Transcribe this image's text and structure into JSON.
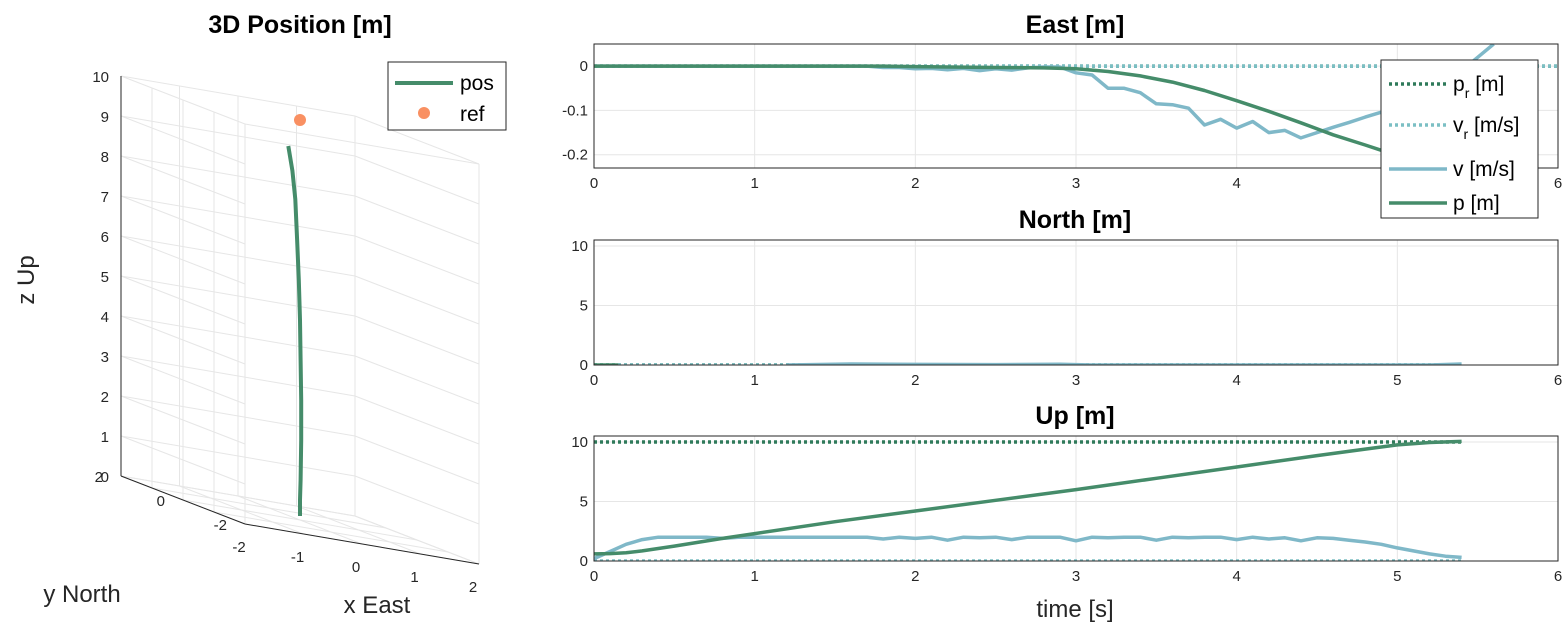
{
  "chart_data": [
    {
      "type": "line3d",
      "title": "3D Position [m]",
      "xlabel": "x East",
      "ylabel": "y North",
      "zlabel": "z Up",
      "xlim": [
        -2,
        2
      ],
      "ylim": [
        -2,
        2
      ],
      "zlim": [
        0,
        10
      ],
      "x_ticks": [
        -2,
        -1,
        0,
        1,
        2
      ],
      "y_ticks": [
        -2,
        0,
        2
      ],
      "z_ticks": [
        0,
        1,
        2,
        3,
        4,
        5,
        6,
        7,
        8,
        9,
        10
      ],
      "grid": true,
      "legend": {
        "placement": "top-right",
        "entries": [
          "pos",
          "ref"
        ]
      },
      "series": [
        {
          "name": "pos",
          "kind": "line",
          "color": "#458c6a",
          "points": [
            [
              0,
              0,
              0.1
            ],
            [
              0,
              0,
              0.5
            ],
            [
              0.01,
              0,
              1
            ],
            [
              0.02,
              0,
              2
            ],
            [
              0.02,
              0,
              3
            ],
            [
              0.01,
              0,
              4
            ],
            [
              0,
              0,
              5
            ],
            [
              -0.02,
              0,
              6
            ],
            [
              -0.05,
              0,
              7
            ],
            [
              -0.08,
              0,
              8
            ],
            [
              -0.13,
              0,
              8.7
            ],
            [
              -0.2,
              0,
              9.3
            ]
          ]
        },
        {
          "name": "ref",
          "kind": "point",
          "color": "#f99062",
          "points": [
            [
              0,
              0,
              10
            ]
          ]
        }
      ]
    },
    {
      "type": "line",
      "title": "East [m]",
      "xlim": [
        0,
        6
      ],
      "ylim": [
        -0.23,
        0.05
      ],
      "x_ticks": [
        0,
        1,
        2,
        3,
        4,
        5,
        6
      ],
      "y_ticks": [
        0,
        -0.1,
        -0.2
      ],
      "y_tick_labels": [
        "0",
        "-0.1",
        "-0.2"
      ],
      "grid": true,
      "legend": {
        "placement": "right",
        "entries": [
          {
            "base": "p",
            "sub": "r",
            "rest": " [m]",
            "style": "dotted",
            "color": "#2f7a5a"
          },
          {
            "base": "v",
            "sub": "r",
            "rest": " [m/s]",
            "style": "dotted",
            "color": "#7bbfc4"
          },
          {
            "base": "v [m/s]",
            "sub": "",
            "rest": "",
            "style": "solid",
            "color": "#7fb8c8"
          },
          {
            "base": "p [m]",
            "sub": "",
            "rest": "",
            "style": "solid",
            "color": "#458c6a"
          }
        ]
      },
      "series": [
        {
          "name": "p_r [m]",
          "style": "dotted",
          "color": "#2f7a5a",
          "x": [
            0,
            6
          ],
          "y": [
            0,
            0
          ]
        },
        {
          "name": "v_r [m/s]",
          "style": "dotted",
          "color": "#7bbfc4",
          "x": [
            0,
            6
          ],
          "y": [
            0,
            0
          ]
        },
        {
          "name": "v [m/s]",
          "style": "solid",
          "color": "#7fb8c8",
          "x": [
            0,
            1.7,
            1.8,
            1.9,
            2.0,
            2.1,
            2.2,
            2.3,
            2.4,
            2.5,
            2.6,
            2.7,
            2.8,
            2.9,
            3.0,
            3.1,
            3.2,
            3.3,
            3.4,
            3.5,
            3.6,
            3.7,
            3.8,
            3.9,
            4.0,
            4.1,
            4.2,
            4.3,
            4.4,
            4.5,
            4.6,
            4.7,
            4.8,
            4.9,
            5.0,
            5.1,
            5.2,
            5.3,
            5.4,
            5.5,
            5.6
          ],
          "y": [
            0,
            0,
            -0.003,
            -0.003,
            -0.006,
            -0.005,
            -0.008,
            -0.005,
            -0.01,
            -0.006,
            -0.009,
            -0.004,
            -0.002,
            -0.002,
            -0.015,
            -0.02,
            -0.05,
            -0.05,
            -0.06,
            -0.085,
            -0.087,
            -0.095,
            -0.133,
            -0.12,
            -0.14,
            -0.125,
            -0.15,
            -0.145,
            -0.162,
            -0.15,
            -0.138,
            -0.127,
            -0.115,
            -0.104,
            -0.09,
            -0.072,
            -0.052,
            -0.032,
            -0.01,
            0.02,
            0.05
          ]
        },
        {
          "name": "p [m]",
          "style": "solid",
          "color": "#458c6a",
          "x": [
            0,
            1.8,
            2.0,
            2.5,
            2.8,
            3.0,
            3.2,
            3.4,
            3.6,
            3.8,
            4.0,
            4.2,
            4.4,
            4.6,
            4.8,
            4.9,
            5.0
          ],
          "y": [
            0,
            0,
            -0.001,
            -0.003,
            -0.004,
            -0.006,
            -0.012,
            -0.022,
            -0.036,
            -0.055,
            -0.078,
            -0.102,
            -0.128,
            -0.155,
            -0.178,
            -0.19,
            -0.2
          ]
        }
      ]
    },
    {
      "type": "line",
      "title": "North [m]",
      "xlim": [
        0,
        6
      ],
      "ylim": [
        0,
        10.5
      ],
      "x_ticks": [
        0,
        1,
        2,
        3,
        4,
        5,
        6
      ],
      "y_ticks": [
        0,
        5,
        10
      ],
      "y_tick_labels": [
        "0",
        "5",
        "10"
      ],
      "grid": true,
      "series": [
        {
          "name": "p_r [m]",
          "style": "dotted",
          "color": "#2f7a5a",
          "x": [
            0,
            5.4
          ],
          "y": [
            0,
            0
          ]
        },
        {
          "name": "v_r [m/s]",
          "style": "dotted",
          "color": "#7bbfc4",
          "x": [
            0,
            5.4
          ],
          "y": [
            0,
            0
          ]
        },
        {
          "name": "p [m]",
          "style": "solid",
          "color": "#458c6a",
          "x": [
            0,
            0.15
          ],
          "y": [
            0,
            0
          ]
        },
        {
          "name": "v [m/s]",
          "style": "solid",
          "color": "#7fb8c8",
          "x": [
            1.2,
            1.6,
            2.0,
            2.5,
            2.9,
            3.1,
            5.2,
            5.4
          ],
          "y": [
            0,
            0.08,
            0.05,
            0.03,
            0.06,
            0,
            0,
            0.08
          ]
        }
      ]
    },
    {
      "type": "line",
      "title": "Up [m]",
      "xlabel": "time [s]",
      "xlim": [
        0,
        6
      ],
      "ylim": [
        0,
        10.5
      ],
      "x_ticks": [
        0,
        1,
        2,
        3,
        4,
        5,
        6
      ],
      "y_ticks": [
        0,
        5,
        10
      ],
      "y_tick_labels": [
        "0",
        "5",
        "10"
      ],
      "grid": true,
      "series": [
        {
          "name": "p_r [m]",
          "style": "dotted",
          "color": "#2f7a5a",
          "x": [
            0,
            5.4
          ],
          "y": [
            10,
            10
          ]
        },
        {
          "name": "v_r [m/s]",
          "style": "dotted",
          "color": "#7bbfc4",
          "x": [
            0,
            5.4
          ],
          "y": [
            0,
            0
          ]
        },
        {
          "name": "v [m/s]",
          "style": "solid",
          "color": "#7fb8c8",
          "x": [
            0,
            0.1,
            0.2,
            0.3,
            0.4,
            0.5,
            0.6,
            0.7,
            0.8,
            0.9,
            1.0,
            1.1,
            1.2,
            1.3,
            1.4,
            1.5,
            1.6,
            1.7,
            1.8,
            1.9,
            2.0,
            2.1,
            2.2,
            2.3,
            2.4,
            2.5,
            2.6,
            2.7,
            2.8,
            2.9,
            3.0,
            3.1,
            3.2,
            3.3,
            3.4,
            3.5,
            3.6,
            3.7,
            3.8,
            3.9,
            4.0,
            4.1,
            4.2,
            4.3,
            4.4,
            4.5,
            4.6,
            4.7,
            4.8,
            4.9,
            5.0,
            5.1,
            5.2,
            5.3,
            5.4
          ],
          "y": [
            0.2,
            0.8,
            1.4,
            1.8,
            2.0,
            2.0,
            2.0,
            2.0,
            1.9,
            2.0,
            2.0,
            2.0,
            2.0,
            2.0,
            2.0,
            2.0,
            2.0,
            2.0,
            1.85,
            2.0,
            1.9,
            2.0,
            1.75,
            2.0,
            1.95,
            2.0,
            1.8,
            2.0,
            2.0,
            2.0,
            1.7,
            2.0,
            1.95,
            2.0,
            2.0,
            1.75,
            2.0,
            1.95,
            2.0,
            2.0,
            1.8,
            2.0,
            1.85,
            1.95,
            1.7,
            1.95,
            1.9,
            1.75,
            1.6,
            1.4,
            1.1,
            0.85,
            0.6,
            0.4,
            0.3
          ]
        },
        {
          "name": "p [m]",
          "style": "solid",
          "color": "#458c6a",
          "x": [
            0,
            0.1,
            0.2,
            0.3,
            0.5,
            0.8,
            1.0,
            1.5,
            2.0,
            2.5,
            3.0,
            3.5,
            4.0,
            4.5,
            4.8,
            5.0,
            5.2,
            5.4
          ],
          "y": [
            0.6,
            0.62,
            0.7,
            0.85,
            1.25,
            1.9,
            2.3,
            3.3,
            4.2,
            5.1,
            6.0,
            6.95,
            7.9,
            8.85,
            9.4,
            9.75,
            9.95,
            10.05
          ]
        }
      ]
    }
  ]
}
